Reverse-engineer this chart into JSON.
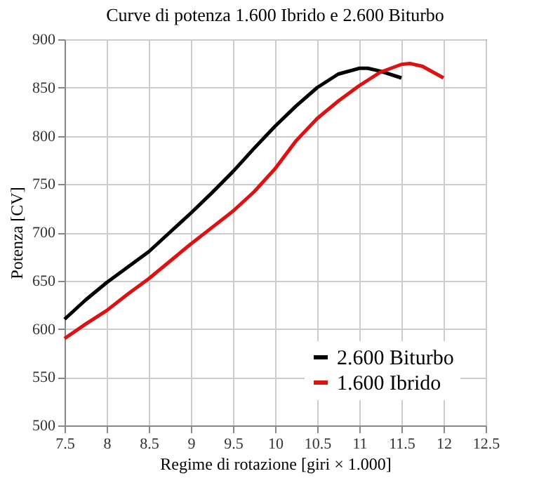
{
  "chart_data": {
    "type": "line",
    "title": "Curve di potenza 1.600 Ibrido e 2.600 Biturbo",
    "xlabel": "Regime di rotazione  [giri × 1.000]",
    "ylabel": "Potenza  [CV]",
    "xlim": [
      7.5,
      12.5
    ],
    "xticks": [
      7.5,
      8,
      8.5,
      9,
      9.5,
      10,
      10.5,
      11,
      11.5,
      12,
      12.5
    ],
    "ylim": [
      500,
      900
    ],
    "yticks": [
      500,
      550,
      600,
      650,
      700,
      750,
      800,
      850,
      900
    ],
    "grid": true,
    "legend": "bottom right",
    "line_style": "solid",
    "marker": "none",
    "series": [
      {
        "name": "2.600 Biturbo",
        "color": "#000000",
        "x": [
          7.5,
          7.75,
          8,
          8.25,
          8.5,
          8.75,
          9,
          9.25,
          9.5,
          9.75,
          10,
          10.25,
          10.5,
          10.75,
          11,
          11.1,
          11.25,
          11.5
        ],
        "values": [
          610,
          630,
          648,
          664,
          680,
          700,
          720,
          741,
          763,
          787,
          810,
          831,
          850,
          864,
          870,
          870,
          867,
          860
        ]
      },
      {
        "name": "1.600 Ibrido",
        "color": "#dd1111",
        "x": [
          7.5,
          7.75,
          8,
          8.25,
          8.5,
          8.75,
          9,
          9.25,
          9.5,
          9.75,
          10,
          10.25,
          10.5,
          10.75,
          11,
          11.25,
          11.5,
          11.6,
          11.75,
          12
        ],
        "values": [
          590,
          605,
          619,
          636,
          652,
          670,
          688,
          705,
          722,
          742,
          766,
          795,
          818,
          836,
          852,
          866,
          874,
          875,
          872,
          860
        ]
      }
    ]
  }
}
